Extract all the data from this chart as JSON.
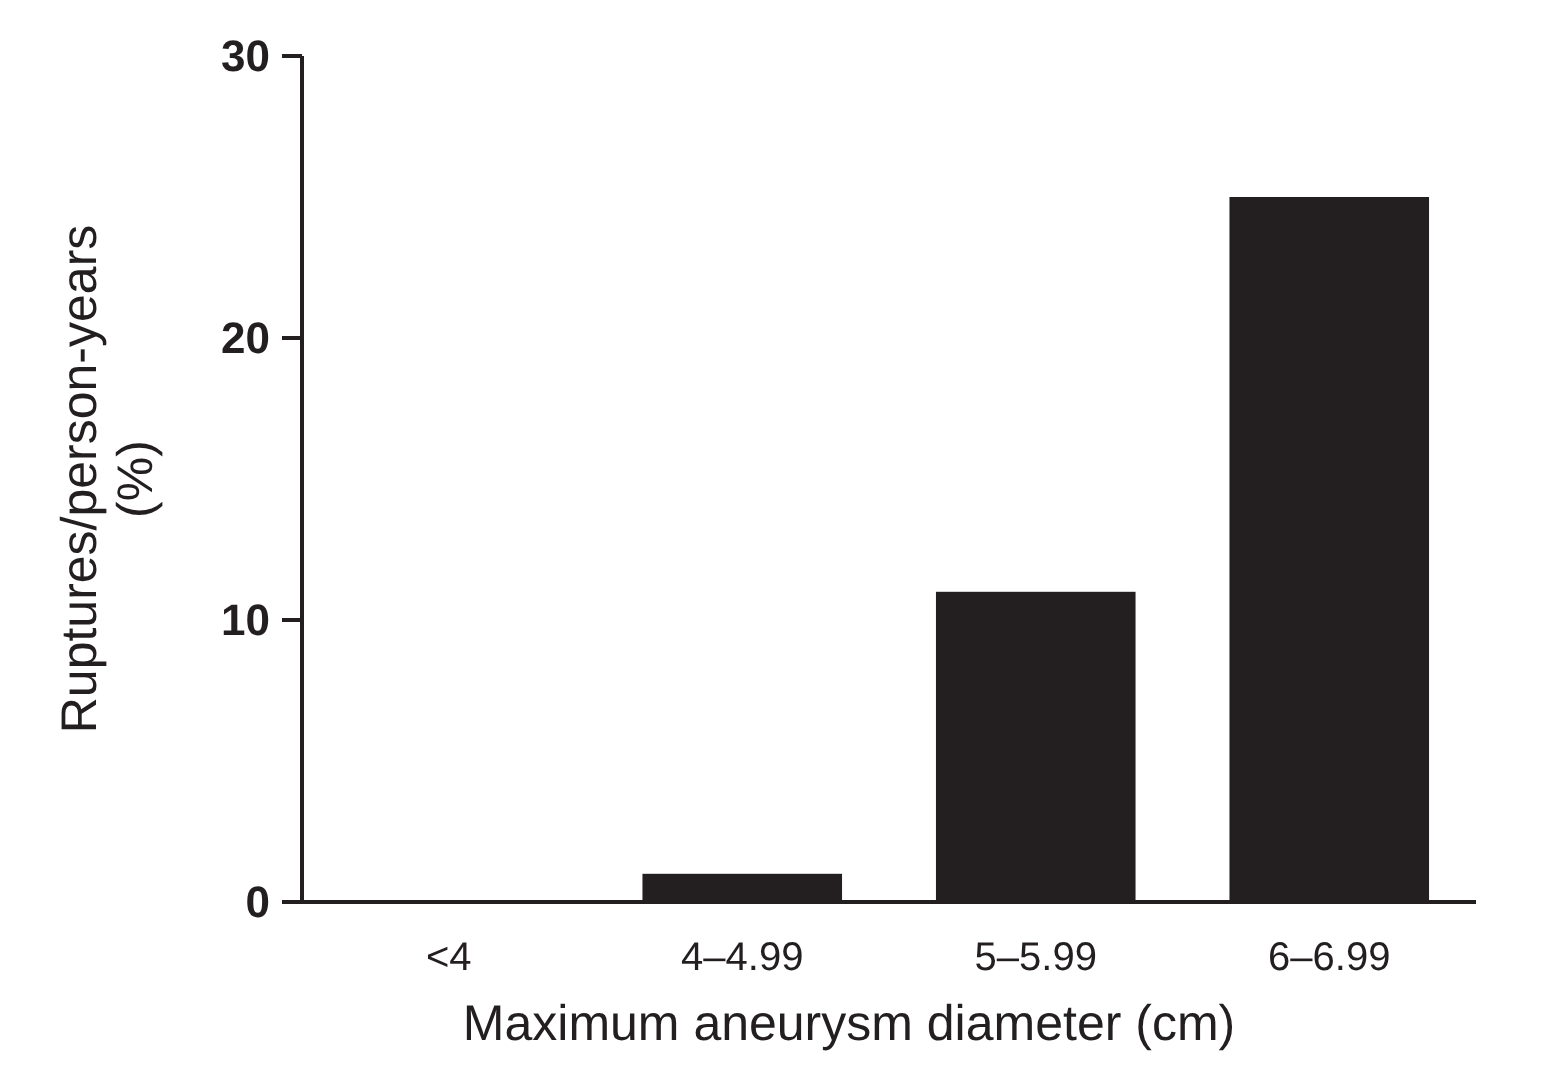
{
  "chart_data": {
    "type": "bar",
    "xlabel": "Maximum aneurysm diameter (cm)",
    "ylabel": "Ruptures/person-years\n(%)",
    "categories": [
      "<4",
      "4–4.99",
      "5–5.99",
      "6–6.99"
    ],
    "values": [
      0,
      1,
      11,
      25
    ],
    "color": "#231f20",
    "ylim": [
      0,
      30
    ],
    "yticks": [
      0,
      10,
      20,
      30
    ],
    "grid": false
  }
}
